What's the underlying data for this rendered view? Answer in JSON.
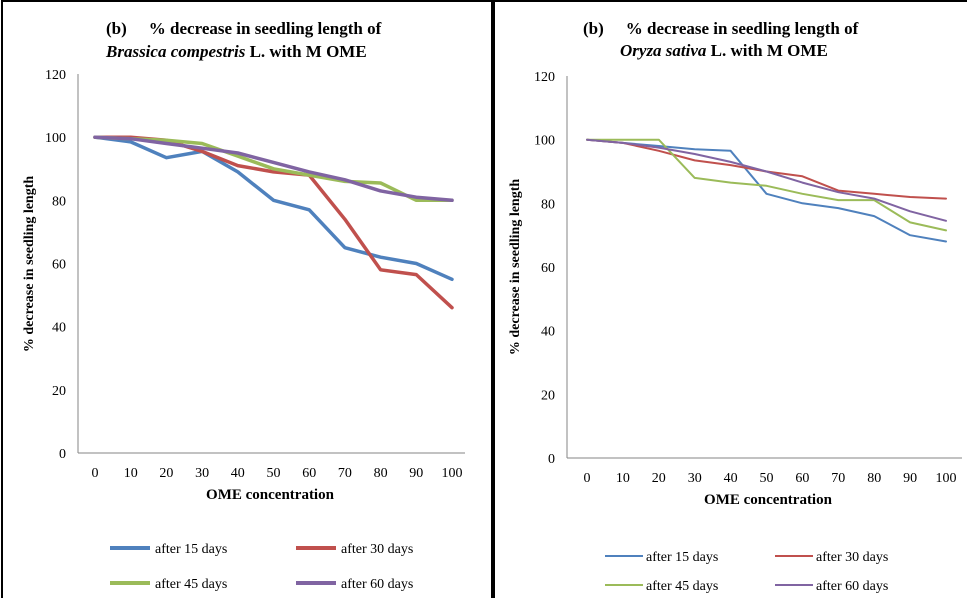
{
  "colors": {
    "after_15_days": "#4f81bd",
    "after_30_days": "#c0504d",
    "after_45_days": "#9bbb59",
    "after_60_days": "#8064a2"
  },
  "chart_data": [
    {
      "type": "line",
      "title_prefix": "(b)",
      "title_line1_rest": "% decrease in seedling length of",
      "title_species": "Brassica compestris",
      "title_line2_rest": " L. with M OME",
      "xlabel": "OME concentration",
      "ylabel": "% decrease in seedling length",
      "ylim": [
        0,
        120
      ],
      "yticks": [
        "0",
        "20",
        "40",
        "60",
        "80",
        "100",
        "120"
      ],
      "categories": [
        "0",
        "10",
        "20",
        "30",
        "40",
        "50",
        "60",
        "70",
        "80",
        "90",
        "100"
      ],
      "grid": false,
      "legend_position": "bottom",
      "series": [
        {
          "name": "after 15 days",
          "values": [
            100,
            98.5,
            93.5,
            95.5,
            89,
            80,
            77,
            65,
            62,
            60,
            55
          ]
        },
        {
          "name": "after 30 days",
          "values": [
            100,
            100,
            99,
            95.5,
            91,
            89,
            88,
            74,
            58,
            56.5,
            46
          ]
        },
        {
          "name": "after 45 days",
          "values": [
            100,
            99.5,
            99,
            98,
            94,
            90,
            88,
            86,
            85.5,
            80,
            80
          ]
        },
        {
          "name": "after 60 days",
          "values": [
            100,
            99.5,
            98,
            96.5,
            95,
            92,
            89,
            86.5,
            83,
            81,
            80
          ]
        }
      ]
    },
    {
      "type": "line",
      "title_prefix": "(b)",
      "title_line1_rest": "% decrease in seedling length of",
      "title_species": "Oryza sativa",
      "title_line2_rest": " L. with M OME",
      "xlabel": "OME concentration",
      "ylabel": "% decrease in seedling length",
      "ylim": [
        0,
        120
      ],
      "yticks": [
        "0",
        "20",
        "40",
        "60",
        "80",
        "100",
        "120"
      ],
      "categories": [
        "0",
        "10",
        "20",
        "30",
        "40",
        "50",
        "60",
        "70",
        "80",
        "90",
        "100"
      ],
      "grid": false,
      "legend_position": "bottom",
      "series": [
        {
          "name": "after 15 days",
          "values": [
            100,
            99,
            98,
            97,
            96.5,
            83,
            80,
            78.5,
            76,
            70,
            68
          ]
        },
        {
          "name": "after 30 days",
          "values": [
            100,
            99,
            96.5,
            93.5,
            92,
            90,
            88.5,
            84,
            83,
            82,
            81.5
          ]
        },
        {
          "name": "after 45 days",
          "values": [
            100,
            100,
            100,
            88,
            86.5,
            85.5,
            83,
            81,
            81,
            74,
            71.5
          ]
        },
        {
          "name": "after 60 days",
          "values": [
            100,
            99,
            97.5,
            95.5,
            93,
            90,
            86.5,
            83.5,
            81.5,
            77.5,
            74.5
          ]
        }
      ]
    }
  ]
}
